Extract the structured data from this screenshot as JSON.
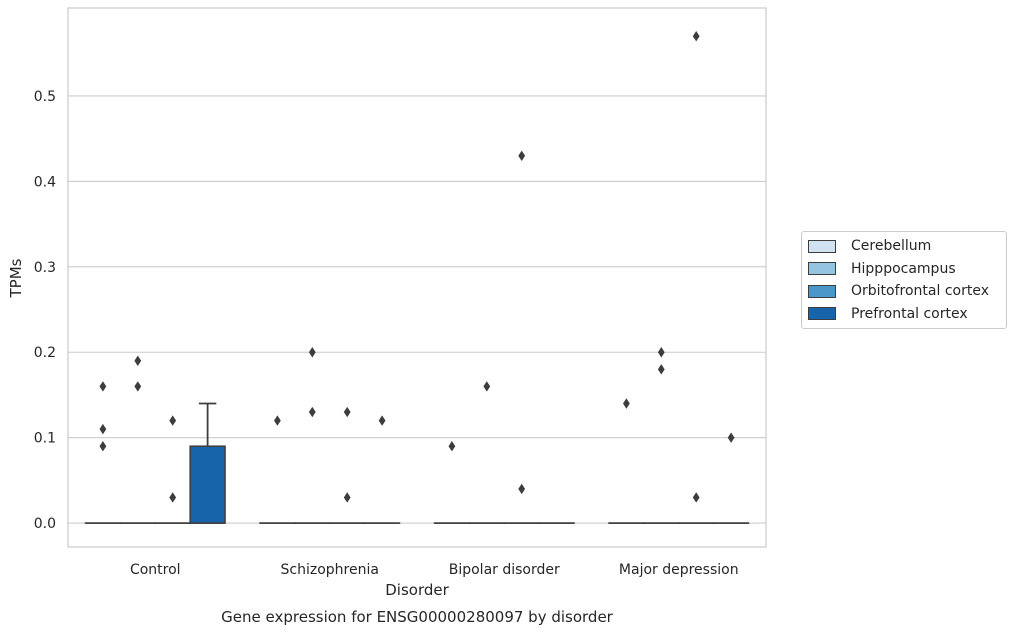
{
  "chart_data": {
    "type": "box",
    "title": "Gene expression for ENSG00000280097 by disorder",
    "xlabel": "Disorder",
    "ylabel": "TPMs",
    "categories": [
      "Control",
      "Schizophrenia",
      "Bipolar disorder",
      "Major depression"
    ],
    "ylim": [
      -0.028,
      0.603
    ],
    "yticks": [
      0.0,
      0.1,
      0.2,
      0.3,
      0.4,
      0.5
    ],
    "ytick_labels": [
      "0.0",
      "0.1",
      "0.2",
      "0.3",
      "0.4",
      "0.5"
    ],
    "grid": true,
    "legend_position": "right",
    "series": [
      {
        "name": "Cerebellum",
        "color": "#d0e1f2",
        "boxes": [
          {
            "min": 0,
            "q1": 0,
            "median": 0,
            "q3": 0,
            "max": 0,
            "outliers": [
              0.16,
              0.11,
              0.09
            ]
          },
          {
            "min": 0,
            "q1": 0,
            "median": 0,
            "q3": 0,
            "max": 0,
            "outliers": [
              0.12
            ]
          },
          {
            "min": 0,
            "q1": 0,
            "median": 0,
            "q3": 0,
            "max": 0,
            "outliers": [
              0.09
            ]
          },
          {
            "min": 0,
            "q1": 0,
            "median": 0,
            "q3": 0,
            "max": 0,
            "outliers": [
              0.14
            ]
          }
        ]
      },
      {
        "name": "Hipppocampus",
        "color": "#94c4df",
        "boxes": [
          {
            "min": 0,
            "q1": 0,
            "median": 0,
            "q3": 0,
            "max": 0,
            "outliers": [
              0.19,
              0.16
            ]
          },
          {
            "min": 0,
            "q1": 0,
            "median": 0,
            "q3": 0,
            "max": 0,
            "outliers": [
              0.2,
              0.13
            ]
          },
          {
            "min": 0,
            "q1": 0,
            "median": 0,
            "q3": 0,
            "max": 0,
            "outliers": [
              0.16
            ]
          },
          {
            "min": 0,
            "q1": 0,
            "median": 0,
            "q3": 0,
            "max": 0,
            "outliers": [
              0.2,
              0.18
            ]
          }
        ]
      },
      {
        "name": "Orbitofrontal cortex",
        "color": "#4a98c9",
        "boxes": [
          {
            "min": 0,
            "q1": 0,
            "median": 0,
            "q3": 0,
            "max": 0,
            "outliers": [
              0.12,
              0.03
            ]
          },
          {
            "min": 0,
            "q1": 0,
            "median": 0,
            "q3": 0,
            "max": 0,
            "outliers": [
              0.13,
              0.03
            ]
          },
          {
            "min": 0,
            "q1": 0,
            "median": 0,
            "q3": 0,
            "max": 0,
            "outliers": [
              0.43,
              0.04
            ]
          },
          {
            "min": 0,
            "q1": 0,
            "median": 0,
            "q3": 0,
            "max": 0,
            "outliers": [
              0.57,
              0.03
            ]
          }
        ]
      },
      {
        "name": "Prefrontal cortex",
        "color": "#1764ab",
        "boxes": [
          {
            "min": 0,
            "q1": 0,
            "median": 0,
            "q3": 0.09,
            "max": 0.14,
            "outliers": []
          },
          {
            "min": 0,
            "q1": 0,
            "median": 0,
            "q3": 0,
            "max": 0,
            "outliers": [
              0.12
            ]
          },
          {
            "min": 0,
            "q1": 0,
            "median": 0,
            "q3": 0,
            "max": 0,
            "outliers": []
          },
          {
            "min": 0,
            "q1": 0,
            "median": 0,
            "q3": 0,
            "max": 0,
            "outliers": [
              0.1
            ]
          }
        ]
      }
    ]
  }
}
